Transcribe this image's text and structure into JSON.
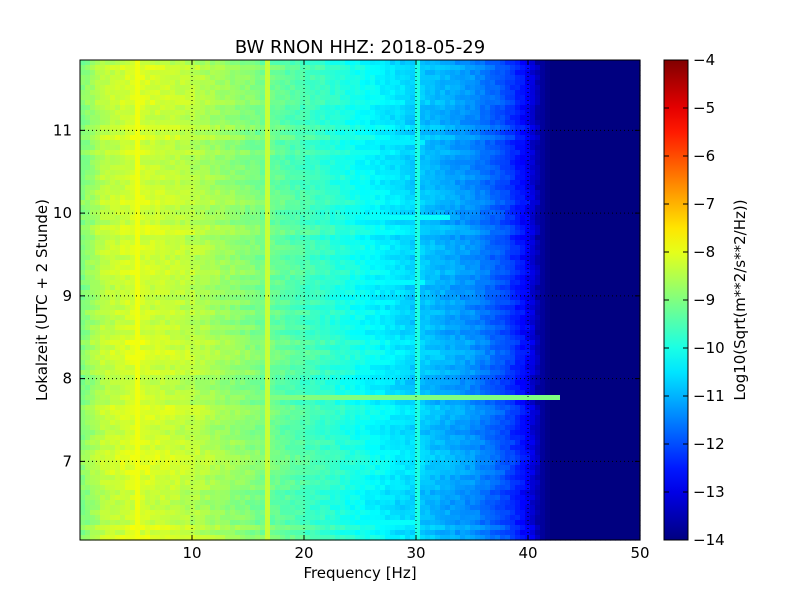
{
  "chart_data": {
    "type": "heatmap",
    "title": "BW RNON HHZ: 2018-05-29",
    "xlabel": "Frequency [Hz]",
    "ylabel": "Lokalzeit (UTC + 2 Stunde)",
    "xlim": [
      0,
      50
    ],
    "ylim": [
      11.85,
      6.05
    ],
    "y_inverted": true,
    "xticks": [
      10,
      20,
      30,
      40,
      50
    ],
    "yticks": [
      7,
      8,
      9,
      10,
      11
    ],
    "grid": true,
    "colorbar": {
      "label": "Log10(Sqrt(m**2/s**2/Hz))",
      "min": -14,
      "max": -4,
      "ticks": [
        -4,
        -5,
        -6,
        -7,
        -8,
        -9,
        -10,
        -11,
        -12,
        -13,
        -14
      ],
      "colormap": "jet"
    },
    "frequency_profile": {
      "hz": [
        0,
        2,
        5,
        10,
        15,
        20,
        25,
        30,
        35,
        38,
        40,
        41,
        42,
        50
      ],
      "value": [
        -9.0,
        -8.4,
        -8.1,
        -8.4,
        -8.9,
        -9.5,
        -10.1,
        -10.7,
        -11.3,
        -12.0,
        -12.8,
        -13.6,
        -14.0,
        -14.0
      ]
    },
    "line_features": [
      {
        "time": 7.75,
        "f_start": 10,
        "f_end": 43,
        "value": -9.0
      },
      {
        "time": 9.15,
        "f_start": 24,
        "f_end": 31,
        "value": -10.3
      },
      {
        "time": 9.97,
        "f_start": 26,
        "f_end": 33,
        "value": -10.2
      },
      {
        "time": 10.87,
        "f_start": 24,
        "f_end": 31,
        "value": -10.4
      },
      {
        "time": 6.25,
        "f_start": 25,
        "f_end": 30,
        "value": -10.2
      },
      {
        "time": 7.95,
        "f_start": 25,
        "f_end": 28,
        "value": -10.4
      },
      {
        "time": 8.65,
        "f_start": 25,
        "f_end": 28,
        "value": -10.5
      }
    ],
    "vertical_features": [
      {
        "hz": 30.0,
        "value": -10.0
      },
      {
        "hz": 16.7,
        "value": -8.3
      },
      {
        "hz": 5.0,
        "value": -7.9
      }
    ]
  }
}
